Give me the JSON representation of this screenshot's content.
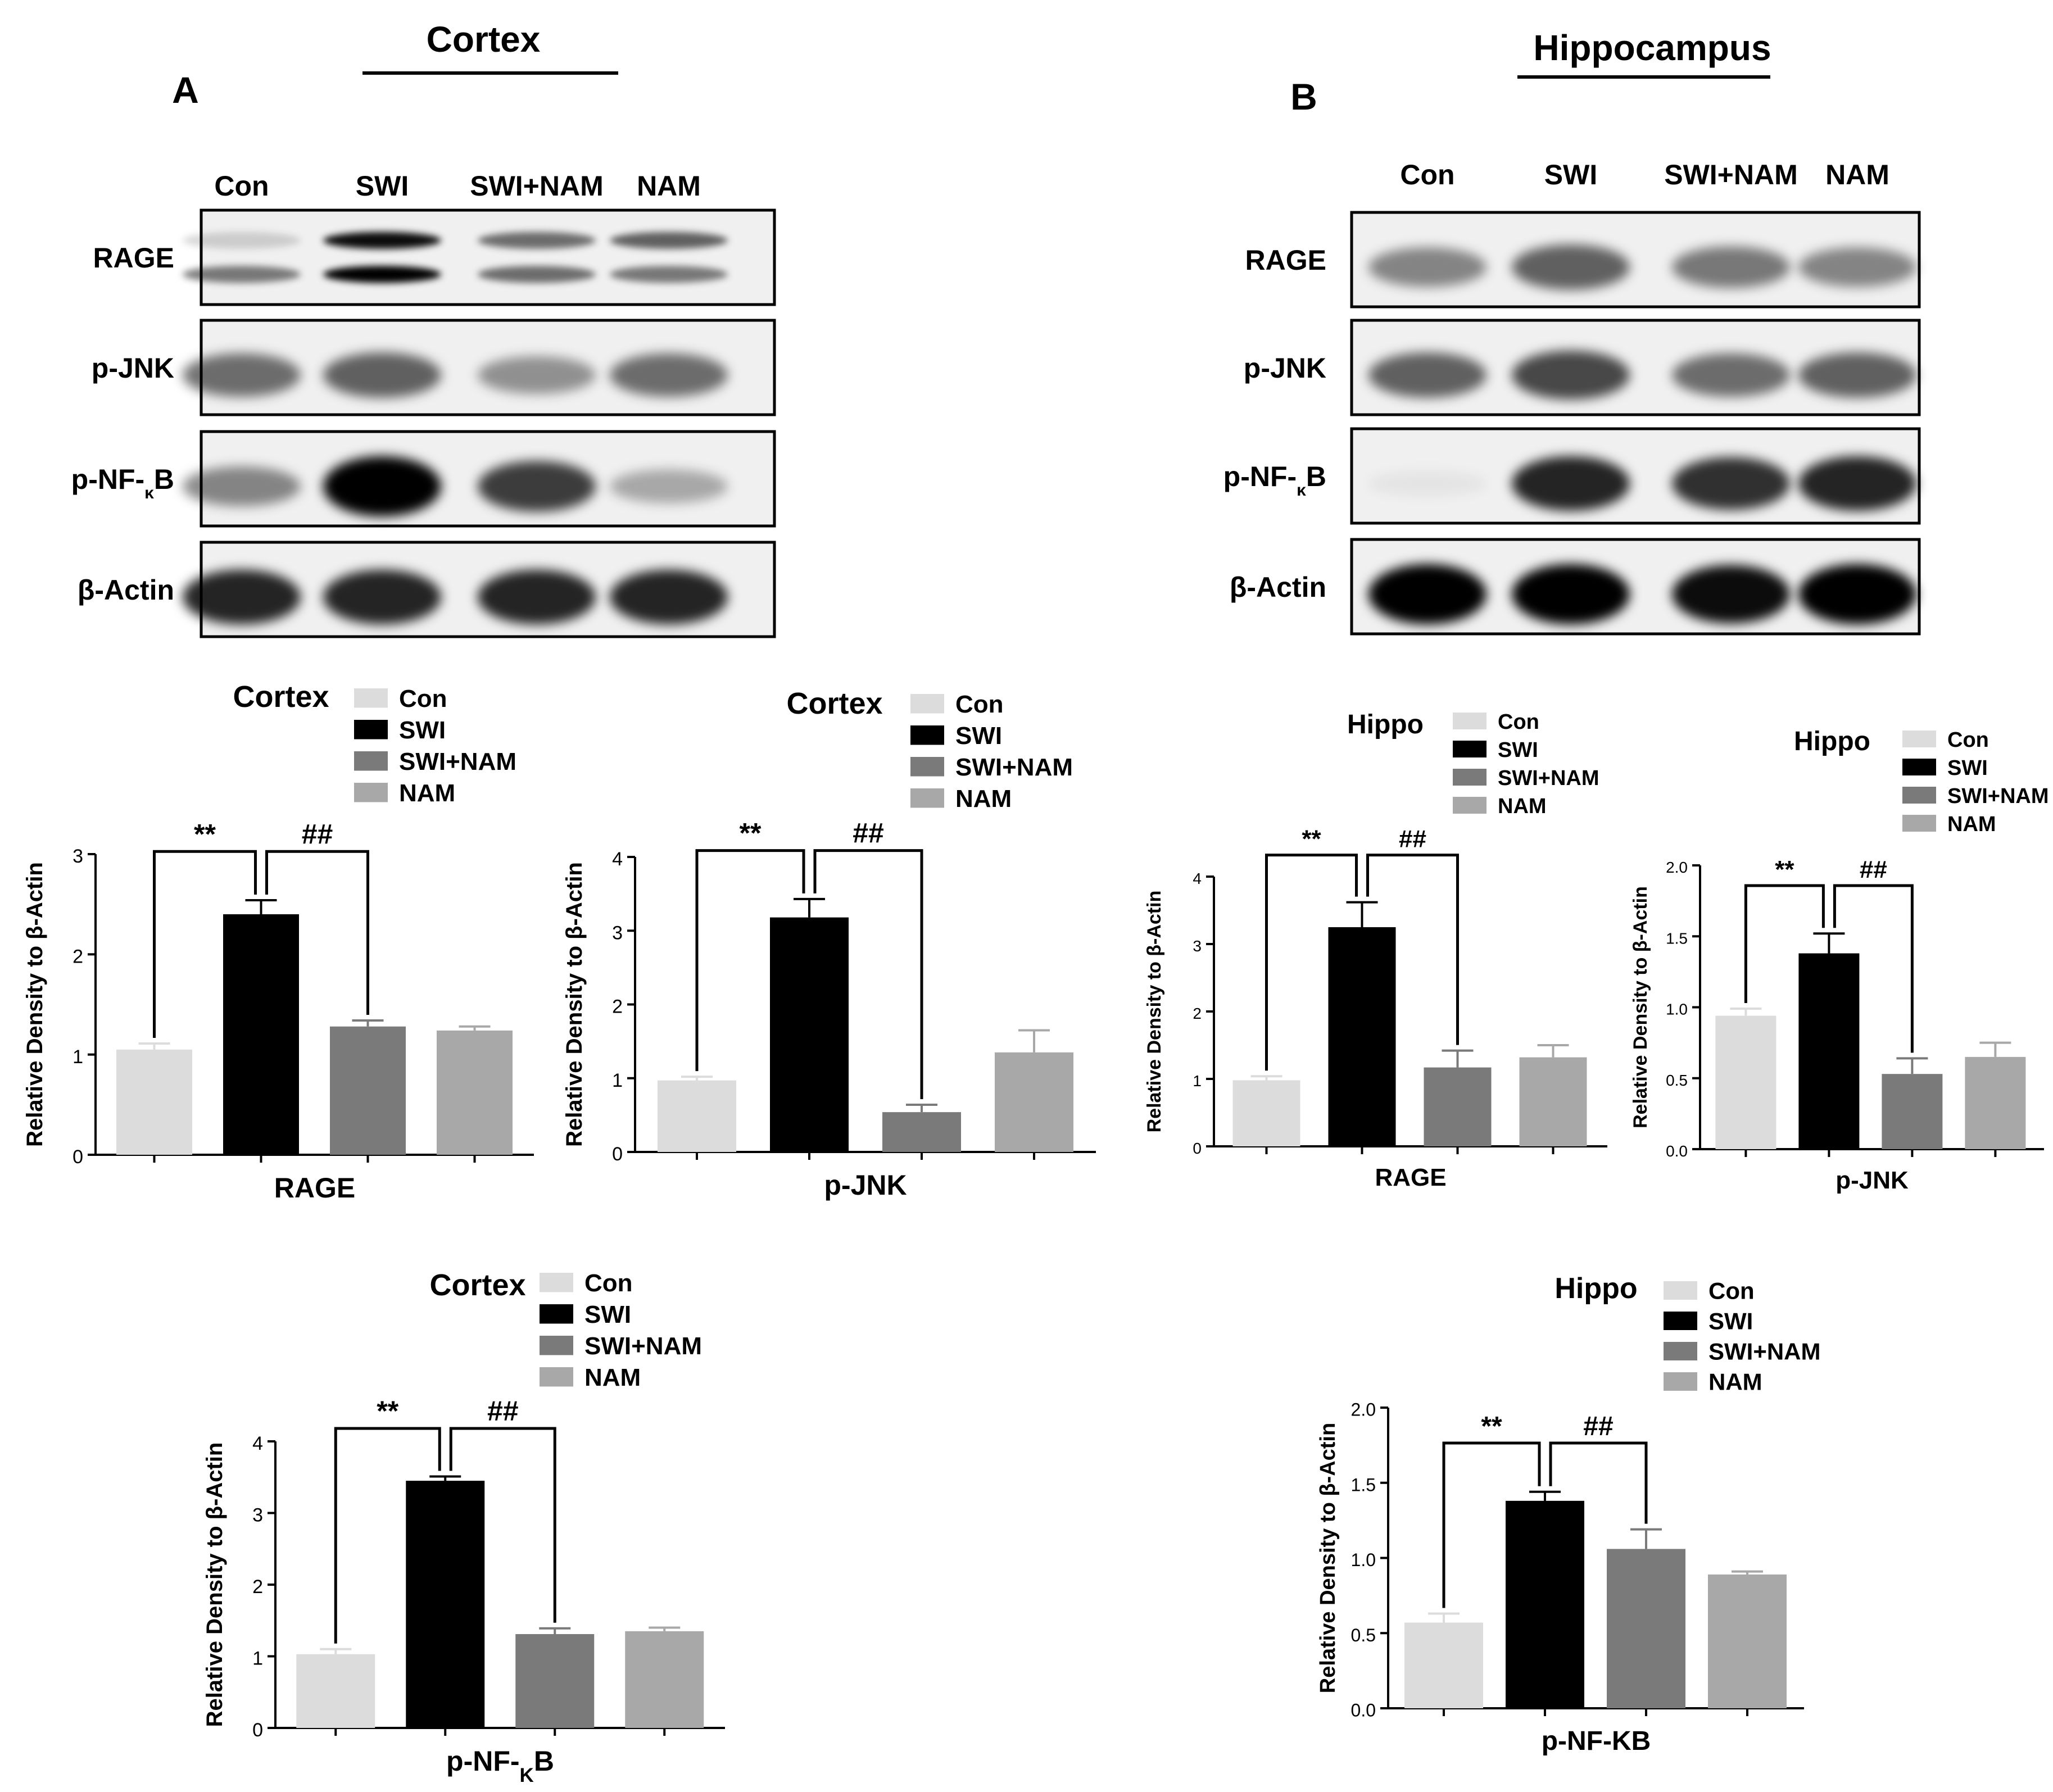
{
  "panels": {
    "A": {
      "letter": "A",
      "title": "Cortex"
    },
    "B": {
      "letter": "B",
      "title": "Hippocampus"
    }
  },
  "blots": {
    "A": {
      "lanes": [
        "Con",
        "SWI",
        "SWI+NAM",
        "NAM"
      ],
      "rows": [
        {
          "label_html": "RAGE",
          "band": "double",
          "intensities": [
            0.15,
            0.95,
            0.55,
            0.6
          ],
          "lower": [
            0.5,
            1.0,
            0.55,
            0.5
          ]
        },
        {
          "label_html": "p-JNK",
          "band": "single",
          "intensities": [
            0.55,
            0.6,
            0.4,
            0.55
          ]
        },
        {
          "label_html": "p-NF-κB",
          "band": "single",
          "intensities": [
            0.45,
            1.0,
            0.75,
            0.3
          ]
        },
        {
          "label_html": "β-Actin",
          "band": "single",
          "intensities": [
            0.85,
            0.85,
            0.85,
            0.85
          ]
        }
      ]
    },
    "B": {
      "lanes": [
        "Con",
        "SWI",
        "SWI+NAM",
        "NAM"
      ],
      "rows": [
        {
          "label_html": "RAGE",
          "band": "single",
          "intensities": [
            0.45,
            0.6,
            0.5,
            0.45
          ]
        },
        {
          "label_html": "p-JNK",
          "band": "single",
          "intensities": [
            0.6,
            0.7,
            0.55,
            0.6
          ]
        },
        {
          "label_html": "p-NF-κB",
          "band": "single",
          "intensities": [
            0.05,
            0.85,
            0.8,
            0.85
          ]
        },
        {
          "label_html": "β-Actin",
          "band": "single",
          "intensities": [
            1.0,
            1.0,
            0.95,
            1.0
          ]
        }
      ]
    }
  },
  "colors": {
    "Con": "#dcdcdc",
    "SWI": "#000000",
    "SWI+NAM": "#7a7a7a",
    "NAM": "#a8a8a8"
  },
  "chart_data": [
    {
      "id": "c1",
      "type": "bar",
      "region": "Cortex",
      "xlabel": "RAGE",
      "ylabel": "Relative Density to β-Actin",
      "categories": [
        "Con",
        "SWI",
        "SWI+NAM",
        "NAM"
      ],
      "values": [
        1.05,
        2.4,
        1.28,
        1.24
      ],
      "errors": [
        0.06,
        0.14,
        0.06,
        0.04
      ],
      "ylim": [
        0,
        3
      ],
      "ticks": [
        "0",
        "1",
        "2",
        "3"
      ],
      "sig": [
        {
          "label": "**",
          "from": 0,
          "to": 1
        },
        {
          "label": "##",
          "from": 1,
          "to": 2
        }
      ]
    },
    {
      "id": "c2",
      "type": "bar",
      "region": "Cortex",
      "xlabel": "p-JNK",
      "ylabel": "Relative Density to β-Actin",
      "categories": [
        "Con",
        "SWI",
        "SWI+NAM",
        "NAM"
      ],
      "values": [
        0.97,
        3.18,
        0.54,
        1.35
      ],
      "errors": [
        0.05,
        0.25,
        0.1,
        0.3
      ],
      "ylim": [
        0,
        4
      ],
      "ticks": [
        "0",
        "1",
        "2",
        "3",
        "4"
      ],
      "sig": [
        {
          "label": "**",
          "from": 0,
          "to": 1
        },
        {
          "label": "##",
          "from": 1,
          "to": 2
        }
      ]
    },
    {
      "id": "c3",
      "type": "bar",
      "region": "Hippo",
      "xlabel": "RAGE",
      "ylabel": "Relative Density to β-Actin",
      "categories": [
        "Con",
        "SWI",
        "SWI+NAM",
        "NAM"
      ],
      "values": [
        0.98,
        3.25,
        1.17,
        1.32
      ],
      "errors": [
        0.06,
        0.37,
        0.25,
        0.18
      ],
      "ylim": [
        0,
        4
      ],
      "ticks": [
        "0",
        "1",
        "2",
        "3",
        "4"
      ],
      "sig": [
        {
          "label": "**",
          "from": 0,
          "to": 1
        },
        {
          "label": "##",
          "from": 1,
          "to": 2
        }
      ]
    },
    {
      "id": "c4",
      "type": "bar",
      "region": "Hippo",
      "xlabel": "p-JNK",
      "ylabel": "Relative Density to β-Actin",
      "categories": [
        "Con",
        "SWI",
        "SWI+NAM",
        "NAM"
      ],
      "values": [
        0.94,
        1.38,
        0.53,
        0.65
      ],
      "errors": [
        0.05,
        0.14,
        0.11,
        0.1
      ],
      "ylim": [
        0,
        2
      ],
      "ticks": [
        "0.0",
        "0.5",
        "1.0",
        "1.5",
        "2.0"
      ],
      "sig": [
        {
          "label": "**",
          "from": 0,
          "to": 1
        },
        {
          "label": "##",
          "from": 1,
          "to": 2
        }
      ]
    },
    {
      "id": "c5",
      "type": "bar",
      "region": "Cortex",
      "xlabel_html": "p-NF-<tspan baseline-shift=\"sub\" font-size=\"70%\">K</tspan>B",
      "ylabel": "Relative Density to β-Actin",
      "categories": [
        "Con",
        "SWI",
        "SWI+NAM",
        "NAM"
      ],
      "values": [
        1.03,
        3.45,
        1.31,
        1.35
      ],
      "errors": [
        0.07,
        0.06,
        0.08,
        0.05
      ],
      "ylim": [
        0,
        4
      ],
      "ticks": [
        "0",
        "1",
        "2",
        "3",
        "4"
      ],
      "sig": [
        {
          "label": "**",
          "from": 0,
          "to": 1
        },
        {
          "label": "##",
          "from": 1,
          "to": 2
        }
      ]
    },
    {
      "id": "c6",
      "type": "bar",
      "region": "Hippo",
      "xlabel": "p-NF-KB",
      "ylabel": "Relative Density to β-Actin",
      "categories": [
        "Con",
        "SWI",
        "SWI+NAM",
        "NAM"
      ],
      "values": [
        0.57,
        1.38,
        1.06,
        0.89
      ],
      "errors": [
        0.06,
        0.06,
        0.13,
        0.02
      ],
      "ylim": [
        0,
        2
      ],
      "ticks": [
        "0.0",
        "0.5",
        "1.0",
        "1.5",
        "2.0"
      ],
      "sig": [
        {
          "label": "**",
          "from": 0,
          "to": 1
        },
        {
          "label": "##",
          "from": 1,
          "to": 2
        }
      ]
    }
  ]
}
